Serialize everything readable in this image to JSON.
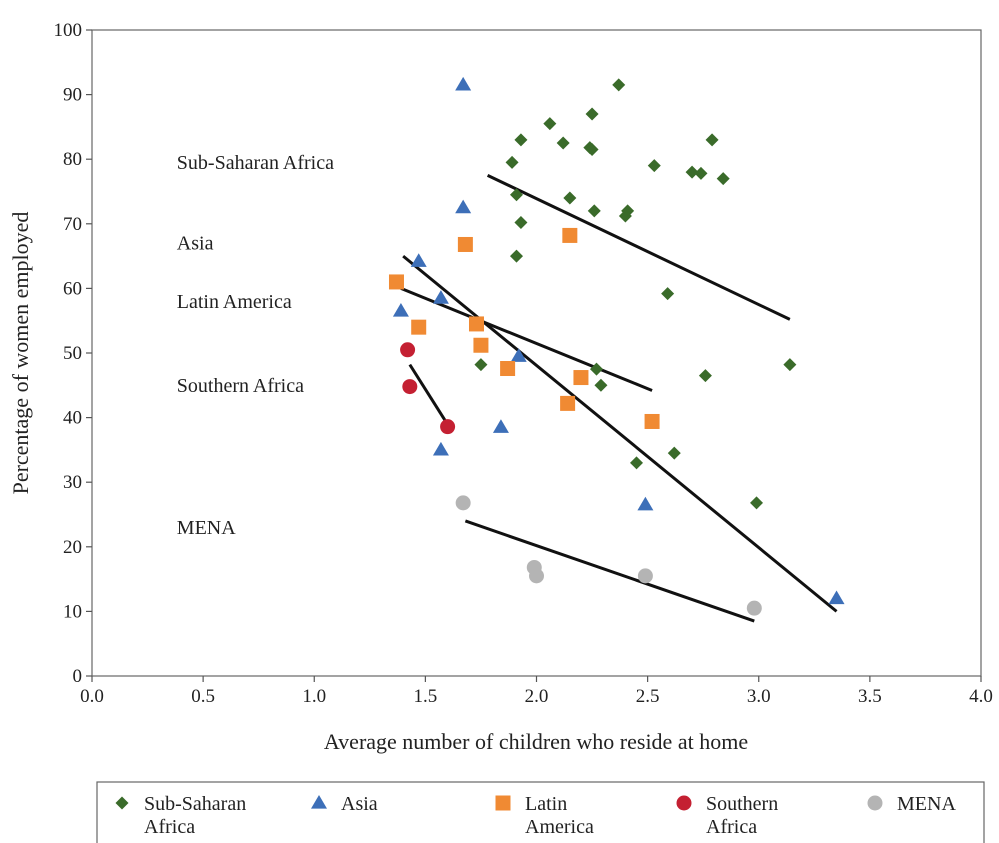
{
  "chart_data": {
    "type": "scatter",
    "xlabel": "Average number of children who reside at home",
    "ylabel": "Percentage of women employed",
    "xlim": [
      0,
      4
    ],
    "ylim": [
      0,
      100
    ],
    "xticks": [
      "0.0",
      "0.5",
      "1.0",
      "1.5",
      "2.0",
      "2.5",
      "3.0",
      "3.5",
      "4.0"
    ],
    "yticks": [
      "0",
      "10",
      "20",
      "30",
      "40",
      "50",
      "60",
      "70",
      "80",
      "90",
      "100"
    ],
    "grid": false,
    "legend_position": "bottom",
    "annotations": [
      {
        "text": "Sub-Saharan Africa",
        "x": 0.35,
        "y": 78.5
      },
      {
        "text": "Asia",
        "x": 0.35,
        "y": 66
      },
      {
        "text": "Latin America",
        "x": 0.35,
        "y": 57
      },
      {
        "text": "Southern Africa",
        "x": 0.35,
        "y": 44
      },
      {
        "text": "MENA",
        "x": 0.35,
        "y": 22
      }
    ],
    "series": [
      {
        "name": "Sub-Saharan Africa",
        "legend_lines": [
          "Sub-Saharan",
          "Africa"
        ],
        "marker": "diamond",
        "color": "#3a6b2a",
        "points": [
          [
            1.93,
            83
          ],
          [
            2.06,
            85.5
          ],
          [
            2.12,
            82.5
          ],
          [
            2.25,
            87
          ],
          [
            2.37,
            91.5
          ],
          [
            2.24,
            81.8
          ],
          [
            2.25,
            81.5
          ],
          [
            1.89,
            79.5
          ],
          [
            2.53,
            79
          ],
          [
            2.79,
            83
          ],
          [
            2.7,
            78
          ],
          [
            2.74,
            77.8
          ],
          [
            2.84,
            77
          ],
          [
            1.91,
            74.5
          ],
          [
            2.15,
            74
          ],
          [
            2.26,
            72
          ],
          [
            2.41,
            72
          ],
          [
            2.4,
            71.2
          ],
          [
            1.93,
            70.2
          ],
          [
            1.91,
            65
          ],
          [
            2.59,
            59.2
          ],
          [
            1.75,
            48.2
          ],
          [
            2.27,
            47.5
          ],
          [
            2.29,
            45
          ],
          [
            2.76,
            46.5
          ],
          [
            3.14,
            48.2
          ],
          [
            2.45,
            33
          ],
          [
            2.62,
            34.5
          ],
          [
            2.99,
            26.8
          ]
        ],
        "trend": [
          [
            1.78,
            77.5
          ],
          [
            3.14,
            55.2
          ]
        ]
      },
      {
        "name": "Asia",
        "legend_lines": [
          "Asia"
        ],
        "marker": "triangle",
        "color": "#3d6fb8",
        "points": [
          [
            1.67,
            91.5
          ],
          [
            1.67,
            72.5
          ],
          [
            1.47,
            64.2
          ],
          [
            1.39,
            56.5
          ],
          [
            1.57,
            58.5
          ],
          [
            1.92,
            49.5
          ],
          [
            1.84,
            38.5
          ],
          [
            1.57,
            35
          ],
          [
            2.49,
            26.5
          ],
          [
            3.35,
            12
          ]
        ],
        "trend": [
          [
            1.4,
            65
          ],
          [
            3.35,
            10
          ]
        ]
      },
      {
        "name": "Latin America",
        "legend_lines": [
          "Latin",
          "America"
        ],
        "marker": "square",
        "color": "#f08a33",
        "points": [
          [
            1.68,
            66.8
          ],
          [
            2.15,
            68.2
          ],
          [
            1.37,
            61
          ],
          [
            1.47,
            54
          ],
          [
            1.73,
            54.5
          ],
          [
            1.75,
            51.2
          ],
          [
            1.87,
            47.6
          ],
          [
            2.2,
            46.2
          ],
          [
            2.14,
            42.2
          ],
          [
            2.52,
            39.4
          ]
        ],
        "trend": [
          [
            1.39,
            60
          ],
          [
            2.52,
            44.2
          ]
        ]
      },
      {
        "name": "Southern Africa",
        "legend_lines": [
          "Southern",
          "Africa"
        ],
        "marker": "circle",
        "color": "#c42032",
        "points": [
          [
            1.42,
            50.5
          ],
          [
            1.43,
            44.8
          ],
          [
            1.6,
            38.6
          ]
        ],
        "trend": [
          [
            1.43,
            48.2
          ],
          [
            1.61,
            38.4
          ]
        ]
      },
      {
        "name": "MENA",
        "legend_lines": [
          "MENA"
        ],
        "marker": "circle",
        "color": "#b4b4b4",
        "points": [
          [
            1.67,
            26.8
          ],
          [
            1.99,
            16.8
          ],
          [
            2.0,
            15.5
          ],
          [
            2.49,
            15.5
          ],
          [
            2.98,
            10.5
          ]
        ],
        "trend": [
          [
            1.68,
            24
          ],
          [
            2.98,
            8.5
          ]
        ]
      }
    ]
  }
}
